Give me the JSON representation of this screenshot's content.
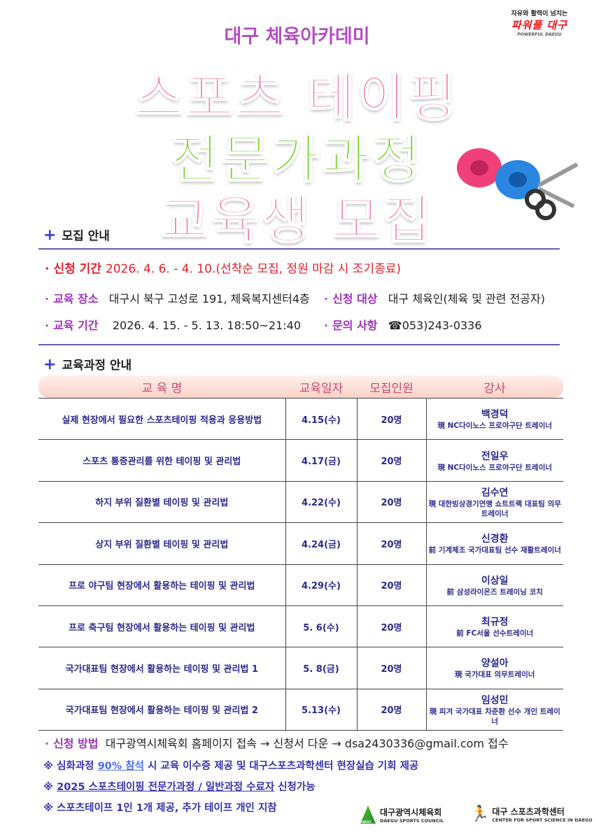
{
  "brand": {
    "slogan": "자유와 활력이 넘치는",
    "main": "파워풀 대구",
    "english": "POWERFUL DAEGU"
  },
  "header": {
    "org": "대구 체육아카데미",
    "title1": "스포츠 테이핑",
    "title2": "전문가과정",
    "title3": "교육생 모집"
  },
  "recruit": {
    "heading": "모집 안내",
    "apply_period_label": "신청 기간",
    "apply_period": "2026.  4. 6. - 4. 10.(선착순 모집, 정원 마감 시 조기종료)",
    "location_label": "교육 장소",
    "location": "대구시 북구 고성로 191, 체육복지센터4층",
    "target_label": "신청 대상",
    "target": "대구 체육인(체육 및 관련 전공자)",
    "edu_period_label": "교육 기간",
    "edu_period": "2026.  4. 15. -  5. 13. 18:50~21:40",
    "contact_label": "문의 사항",
    "contact": "☎053)243-0336"
  },
  "courses": {
    "heading": "교육과정 안내",
    "columns": [
      "교 육 명",
      "교육일자",
      "모집인원",
      "강사"
    ],
    "rows": [
      {
        "name": "실제 현장에서 필요한 스포츠테이핑 적용과 응용방법",
        "date": "4.15(수)",
        "count": "20명",
        "instructor": "백경덕",
        "role": "現 NC다이노스 프로야구단 트레이너"
      },
      {
        "name": "스포츠 통증관리를 위한 테이핑 및 관리법",
        "date": "4.17(금)",
        "count": "20명",
        "instructor": "전일우",
        "role": "現 NC다이노스 프로야구단 트레이너"
      },
      {
        "name": "하지 부위 질환별 테이핑 및 관리법",
        "date": "4.22(수)",
        "count": "20명",
        "instructor": "김수연",
        "role": "現 대한빙상경기연맹 쇼트트랙 대표팀 의무트레이너"
      },
      {
        "name": "상지 부위 질환별 테이핑 및 관리법",
        "date": "4.24(금)",
        "count": "20명",
        "instructor": "신경환",
        "role": "前 기계체조 국가대표팀 선수 재활트레이너"
      },
      {
        "name": "프로 야구팀 현장에서 활용하는 테이핑 및 관리법",
        "date": "4.29(수)",
        "count": "20명",
        "instructor": "이상일",
        "role": "前 삼성라이온즈 트레이닝 코치"
      },
      {
        "name": "프로 축구팀 현장에서 활용하는 테이핑 및 관리법",
        "date": "5. 6(수)",
        "count": "20명",
        "instructor": "최규정",
        "role": "前 FC서울 선수트레이너"
      },
      {
        "name": "국가대표팀 현장에서 활용하는 테이핑 및 관리법 1",
        "date": "5. 8(금)",
        "count": "20명",
        "instructor": "양설아",
        "role": "現 국가대표 의무트레이너"
      },
      {
        "name": "국가대표팀 현장에서 활용하는 테이핑 및 관리법 2",
        "date": "5.13(수)",
        "count": "20명",
        "instructor": "임성민",
        "role": "現 피겨 국가대표 차준환 선수 개인 트레이너"
      }
    ]
  },
  "apply": {
    "label": "신청 방법",
    "text": "대구광역시체육회 홈페이지 접속 → 신청서 다운 → dsa2430336@gmail.com 접수"
  },
  "notes": {
    "n1a": "※ 심화과정 ",
    "n1b": "90% 참석",
    "n1c": " 시 교육 이수증 제공 및 대구스포츠과학센터 현장실습 기회 제공",
    "n2a": "※ ",
    "n2b": "2025 스포츠테이핑 전문가과정 / 일반과정 수료자",
    "n2c": " 신청가능",
    "n3": "※ 스포츠테이프 1인 1개 제공,  추가 테이프 개인 지참"
  },
  "logos": {
    "council": "대구광역시체육회",
    "council_en": "DAEGU SPORTS COUNCIL",
    "council_mark": "DAEGU",
    "center": "대구 스포츠과학센터",
    "center_en": "CENTER FOR SPORT SCIENCE IN DAEGU"
  },
  "colors": {
    "pink": "#f282b4",
    "green": "#76d12b",
    "purple": "#9b32b7",
    "red": "#e0202a",
    "navy": "#2d2a8a"
  }
}
